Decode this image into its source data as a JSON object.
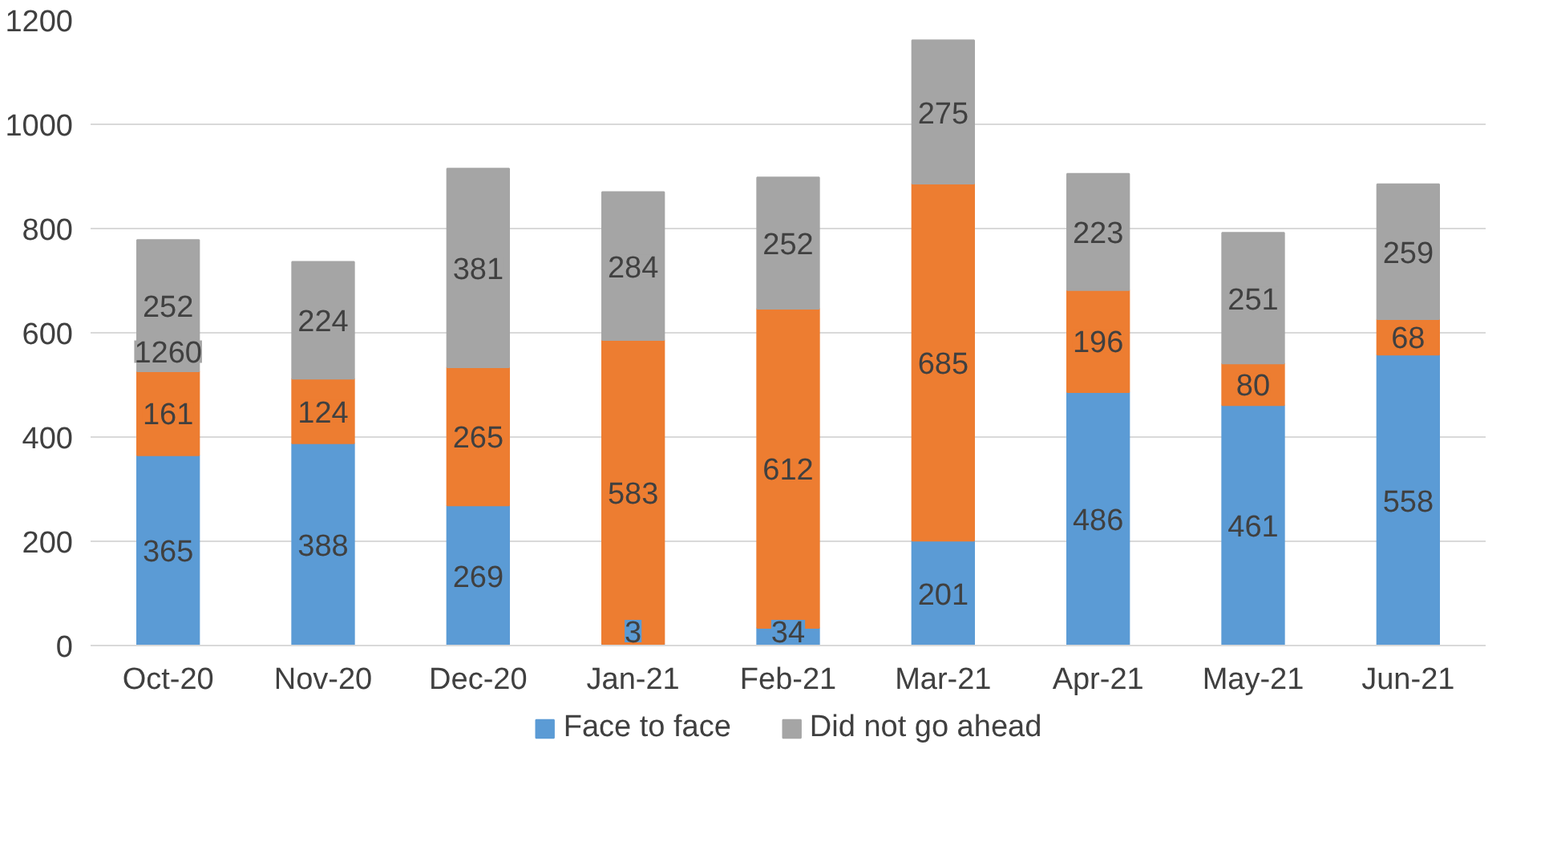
{
  "chart_data": {
    "type": "bar",
    "stacked": true,
    "categories": [
      "Oct-20",
      "Nov-20",
      "Dec-20",
      "Jan-21",
      "Feb-21",
      "Mar-21",
      "Apr-21",
      "May-21",
      "Jun-21"
    ],
    "series": [
      {
        "name": "Face to face",
        "color": "#5b9bd5",
        "values": [
          365,
          388,
          269,
          3,
          34,
          201,
          486,
          461,
          558
        ]
      },
      {
        "color": "#ed7d31",
        "values": [
          161,
          124,
          265,
          583,
          612,
          685,
          196,
          80,
          68
        ]
      },
      {
        "name": "Did not go ahead",
        "color": "#a5a5a5",
        "values": [
          252,
          224,
          381,
          284,
          252,
          275,
          223,
          251,
          259
        ]
      }
    ],
    "ylim": [
      0,
      1200
    ],
    "yticks": [
      0,
      200,
      400,
      600,
      800,
      1000,
      1200
    ],
    "grid": "y",
    "legend": "bottom",
    "data_labels": true,
    "annotations": [
      "1260"
    ]
  }
}
